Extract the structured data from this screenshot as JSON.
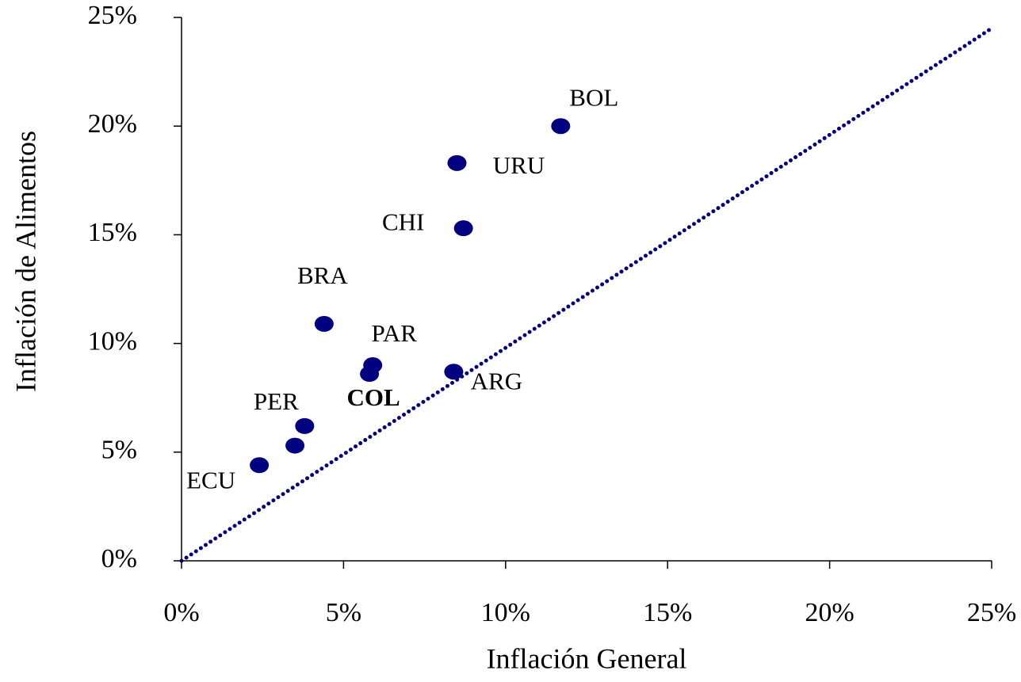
{
  "chart_data": {
    "type": "scatter",
    "x_label": "Inflación General",
    "y_label": "Inflación de Alimentos",
    "color": "#000080",
    "labels": [
      "BOL",
      "URU",
      "CHI",
      "BRA",
      "PAR",
      "COL",
      "ARG",
      "PER",
      null,
      "ECU"
    ],
    "x": [
      11.7,
      8.5,
      8.7,
      4.4,
      5.9,
      5.8,
      8.4,
      3.8,
      3.5,
      2.4
    ],
    "values": [
      20.0,
      18.3,
      15.3,
      10.9,
      9.0,
      8.6,
      8.7,
      6.2,
      5.3,
      4.4
    ],
    "line": {
      "x": [
        0,
        25
      ],
      "values": [
        0,
        24.5
      ]
    },
    "xlim": [
      0,
      25
    ],
    "ylim": [
      0,
      25
    ],
    "xticks": [
      {
        "value": 0,
        "label": "0%"
      },
      {
        "value": 5,
        "label": "5%"
      },
      {
        "value": 10,
        "label": "10%"
      },
      {
        "value": 15,
        "label": "15%"
      },
      {
        "value": 20,
        "label": "20%"
      },
      {
        "value": 25,
        "label": "25%"
      }
    ],
    "yticks": [
      {
        "value": 0,
        "label": "0%"
      },
      {
        "value": 5,
        "label": "5%"
      },
      {
        "value": 10,
        "label": "10%"
      },
      {
        "value": 15,
        "label": "15%"
      },
      {
        "value": 20,
        "label": "20%"
      },
      {
        "value": 25,
        "label": "25%"
      }
    ]
  }
}
